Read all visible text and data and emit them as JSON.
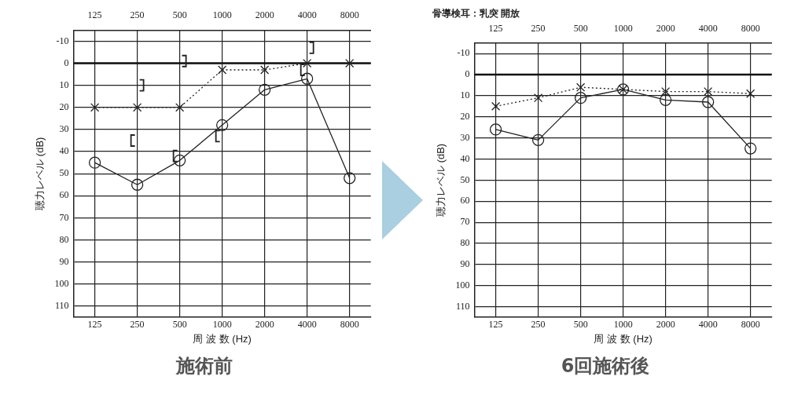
{
  "chart_data": [
    {
      "type": "line",
      "title": "施術前",
      "xlabel": "周 波 数 (Hz)",
      "ylabel": "聴力レベル (dB)",
      "categories": [
        "125",
        "250",
        "500",
        "1000",
        "2000",
        "4000",
        "8000"
      ],
      "ylim": [
        115,
        -15
      ],
      "yticks": [
        -10,
        0,
        10,
        20,
        30,
        40,
        50,
        60,
        70,
        80,
        90,
        100,
        110
      ],
      "grid": true,
      "legend": false,
      "ref_lines": [
        {
          "axis": "y",
          "value": 0,
          "color": "#111111"
        }
      ],
      "series": [
        {
          "color": "#222222",
          "marker": "circle",
          "line_style": "solid",
          "values": [
            45,
            55,
            44,
            28,
            12,
            7,
            52
          ]
        },
        {
          "color": "#222222",
          "marker": "cross",
          "line_style": "dotted",
          "values": [
            20,
            20,
            20,
            3,
            3,
            0,
            null
          ]
        },
        {
          "type": "scatter",
          "color": "#222222",
          "marker": "cross",
          "values": [
            null,
            null,
            null,
            null,
            null,
            null,
            0
          ]
        },
        {
          "type": "scatter",
          "color": "#222222",
          "values": [
            null,
            35,
            42,
            33,
            null,
            3,
            null
          ]
        },
        {
          "type": "scatter",
          "color": "#222222",
          "values": [
            null,
            10,
            -1,
            null,
            null,
            -7,
            null
          ]
        }
      ]
    },
    {
      "type": "line",
      "title": "6回施術後",
      "subtitle": "骨導検耳：乳突 開放",
      "xlabel": "周 波 数 (Hz)",
      "ylabel": "聴力レベル (dB)",
      "categories": [
        "125",
        "250",
        "500",
        "1000",
        "2000",
        "4000",
        "8000"
      ],
      "ylim": [
        115,
        -15
      ],
      "yticks": [
        -10,
        0,
        10,
        20,
        30,
        40,
        50,
        60,
        70,
        80,
        90,
        100,
        110
      ],
      "grid": true,
      "legend": false,
      "ref_lines": [
        {
          "axis": "y",
          "value": 0,
          "color": "#111111"
        }
      ],
      "series": [
        {
          "color": "#222222",
          "marker": "circle",
          "line_style": "solid",
          "values": [
            26,
            31,
            11,
            7,
            12,
            13,
            35
          ]
        },
        {
          "color": "#222222",
          "marker": "cross",
          "line_style": "dotted",
          "values": [
            15,
            11,
            6,
            7,
            8,
            8,
            9
          ]
        }
      ]
    }
  ]
}
